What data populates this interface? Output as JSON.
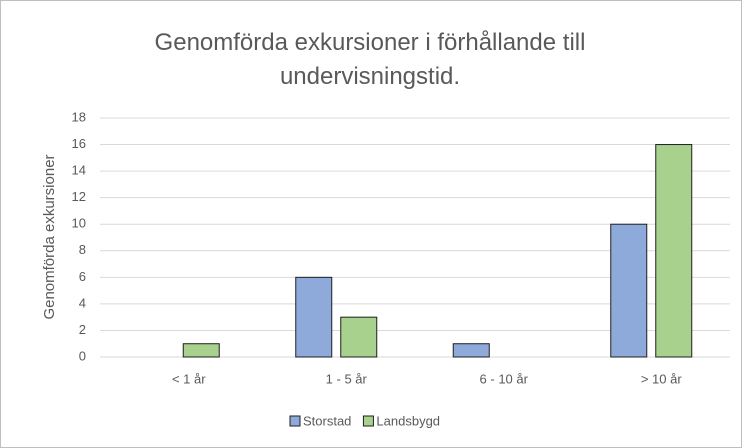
{
  "chart_data": {
    "type": "bar",
    "title": "Genomförda exkursioner i förhållande till undervisningstid.",
    "y_label": "Genomförda exkursioner",
    "categories": [
      "< 1 år",
      "1 - 5 år",
      "6 - 10 år",
      "> 10 år"
    ],
    "series": [
      {
        "name": "Storstad",
        "color": "#8eaadb",
        "values": [
          0,
          6,
          1,
          10
        ]
      },
      {
        "name": "Landsbygd",
        "color": "#a9d18e",
        "values": [
          1,
          3,
          0,
          16
        ]
      }
    ],
    "ylim": [
      0,
      18
    ],
    "yticks": [
      0,
      2,
      4,
      6,
      8,
      10,
      12,
      14,
      16,
      18
    ],
    "grid": true,
    "legend": "bottom"
  }
}
